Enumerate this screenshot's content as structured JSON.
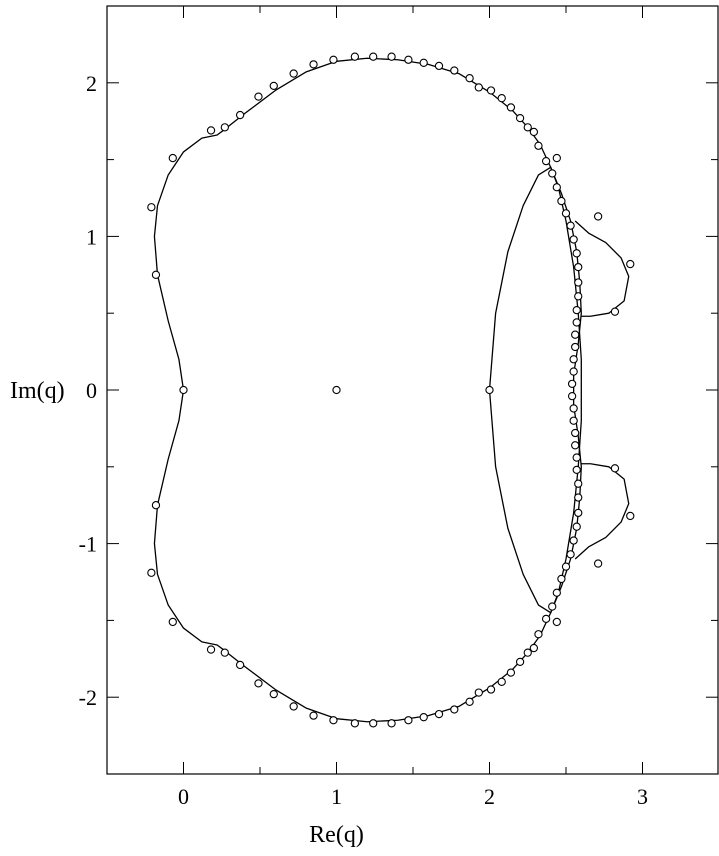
{
  "chart_data": {
    "type": "scatter",
    "title": "",
    "xlabel": "Re(q)",
    "ylabel": "Im(q)",
    "xlim": [
      -0.5,
      3.5
    ],
    "ylim": [
      -2.5,
      2.5
    ],
    "x_ticks": [
      0,
      1,
      2,
      3
    ],
    "x_tick_labels": [
      "0",
      "1",
      "2",
      "3"
    ],
    "y_ticks": [
      -2,
      -1,
      0,
      1,
      2
    ],
    "y_tick_labels": [
      "-2",
      "-1",
      "0",
      "1",
      "2"
    ],
    "minor_tick_step": 0.5,
    "grid": false,
    "legend": "none",
    "series": [
      {
        "kind": "points",
        "marker": "open-circle",
        "points_upper_half": [
          [
            0,
            0
          ],
          [
            1,
            0
          ],
          [
            2,
            0
          ],
          [
            -0.18,
            0.75
          ],
          [
            -0.21,
            1.19
          ],
          [
            -0.07,
            1.51
          ],
          [
            0.18,
            1.69
          ],
          [
            0.27,
            1.71
          ],
          [
            0.37,
            1.79
          ],
          [
            0.49,
            1.91
          ],
          [
            0.59,
            1.98
          ],
          [
            0.72,
            2.06
          ],
          [
            0.85,
            2.12
          ],
          [
            0.98,
            2.15
          ],
          [
            1.12,
            2.17
          ],
          [
            1.24,
            2.17
          ],
          [
            1.36,
            2.17
          ],
          [
            1.47,
            2.15
          ],
          [
            1.57,
            2.13
          ],
          [
            1.67,
            2.11
          ],
          [
            1.77,
            2.08
          ],
          [
            1.87,
            2.03
          ],
          [
            1.93,
            1.97
          ],
          [
            2.01,
            1.95
          ],
          [
            2.08,
            1.9
          ],
          [
            2.14,
            1.84
          ],
          [
            2.2,
            1.77
          ],
          [
            2.25,
            1.71
          ],
          [
            2.29,
            1.68
          ],
          [
            2.32,
            1.59
          ],
          [
            2.37,
            1.49
          ],
          [
            2.41,
            1.41
          ],
          [
            2.44,
            1.32
          ],
          [
            2.47,
            1.23
          ],
          [
            2.5,
            1.15
          ],
          [
            2.53,
            1.07
          ],
          [
            2.55,
            0.98
          ],
          [
            2.57,
            0.89
          ],
          [
            2.58,
            0.8
          ],
          [
            2.58,
            0.7
          ],
          [
            2.58,
            0.61
          ],
          [
            2.57,
            0.52
          ],
          [
            2.57,
            0.44
          ],
          [
            2.56,
            0.36
          ],
          [
            2.56,
            0.28
          ],
          [
            2.55,
            0.2
          ],
          [
            2.55,
            0.12
          ],
          [
            2.54,
            0.04
          ],
          [
            2.44,
            1.51
          ],
          [
            2.71,
            1.13
          ],
          [
            2.92,
            0.82
          ],
          [
            2.82,
            0.51
          ]
        ]
      }
    ],
    "curves": [
      {
        "name": "",
        "kind": "boundary",
        "upper_half": [
          [
            0.0,
            0.0
          ],
          [
            -0.03,
            0.2
          ],
          [
            -0.1,
            0.45
          ],
          [
            -0.17,
            0.75
          ],
          [
            -0.19,
            1.0
          ],
          [
            -0.17,
            1.2
          ],
          [
            -0.1,
            1.4
          ],
          [
            0.0,
            1.55
          ],
          [
            0.12,
            1.64
          ],
          [
            0.22,
            1.66
          ],
          [
            0.26,
            1.69
          ],
          [
            0.4,
            1.8
          ],
          [
            0.6,
            1.95
          ],
          [
            0.8,
            2.07
          ],
          [
            1.0,
            2.14
          ],
          [
            1.2,
            2.16
          ],
          [
            1.4,
            2.15
          ],
          [
            1.6,
            2.12
          ],
          [
            1.8,
            2.06
          ],
          [
            2.0,
            1.94
          ],
          [
            2.15,
            1.82
          ],
          [
            2.25,
            1.71
          ],
          [
            2.33,
            1.6
          ],
          [
            2.4,
            1.45
          ],
          [
            2.47,
            1.28
          ],
          [
            2.53,
            1.1
          ],
          [
            2.57,
            0.9
          ],
          [
            2.59,
            0.7
          ],
          [
            2.6,
            0.5
          ],
          [
            2.58,
            0.3
          ],
          [
            2.55,
            0.1
          ],
          [
            2.55,
            0.0
          ]
        ]
      },
      {
        "name": "",
        "kind": "closed-loop",
        "points": [
          [
            2.0,
            0.0
          ],
          [
            2.04,
            0.5
          ],
          [
            2.12,
            0.9
          ],
          [
            2.22,
            1.2
          ],
          [
            2.32,
            1.4
          ],
          [
            2.4,
            1.45
          ],
          [
            2.45,
            1.32
          ],
          [
            2.5,
            1.1
          ],
          [
            2.55,
            0.8
          ],
          [
            2.58,
            0.5
          ],
          [
            2.6,
            0.2
          ],
          [
            2.6,
            0.0
          ],
          [
            2.6,
            -0.2
          ],
          [
            2.58,
            -0.5
          ],
          [
            2.55,
            -0.8
          ],
          [
            2.5,
            -1.1
          ],
          [
            2.45,
            -1.32
          ],
          [
            2.4,
            -1.45
          ],
          [
            2.32,
            -1.4
          ],
          [
            2.22,
            -1.2
          ],
          [
            2.12,
            -0.9
          ],
          [
            2.04,
            -0.5
          ],
          [
            2.0,
            0.0
          ]
        ]
      },
      {
        "name": "",
        "kind": "upper-lobe",
        "upper_half": [
          [
            2.56,
            1.1
          ],
          [
            2.65,
            1.02
          ],
          [
            2.76,
            0.96
          ],
          [
            2.86,
            0.86
          ],
          [
            2.91,
            0.74
          ],
          [
            2.88,
            0.58
          ],
          [
            2.78,
            0.5
          ],
          [
            2.66,
            0.48
          ],
          [
            2.6,
            0.48
          ]
        ]
      }
    ]
  }
}
